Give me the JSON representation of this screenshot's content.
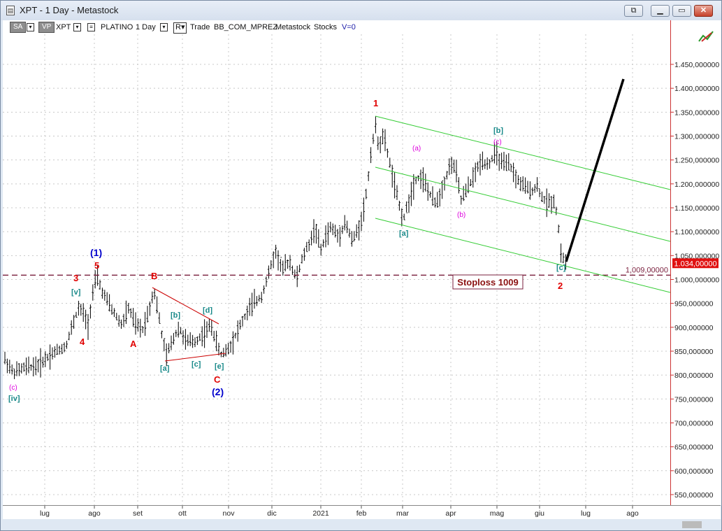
{
  "window": {
    "title": "XPT - 1 Day - Metastock",
    "buttons": {
      "restore_left": "⧉",
      "minimize": "▁",
      "maximize": "▭",
      "close": "✕"
    }
  },
  "toolbar": {
    "sa": "SA",
    "vp": "VP",
    "symbol": "XPT",
    "name": "PLATINO",
    "period": "1 Day",
    "r_label": "R",
    "trade": "Trade",
    "layout": "BB_COM_MPREZ",
    "source": "Metastock",
    "kind": "Stocks",
    "v": "V=0"
  },
  "chart_data": {
    "type": "ohlc",
    "y_ticks": [
      "550,000000",
      "600,000000",
      "650,000000",
      "700,000000",
      "750,000000",
      "800,000000",
      "850,000000",
      "900,000000",
      "950,000000",
      "1.000,000000",
      "1.050,000000",
      "1.100,000000",
      "1.150,000000",
      "1.200,000000",
      "1.250,000000",
      "1.300,000000",
      "1.350,000000",
      "1.400,000000",
      "1.450,000000"
    ],
    "y_tick_values": [
      550,
      600,
      650,
      700,
      750,
      800,
      850,
      900,
      950,
      1000,
      1050,
      1100,
      1150,
      1200,
      1250,
      1300,
      1350,
      1400,
      1450
    ],
    "ylim": [
      510,
      1480
    ],
    "x_labels": [
      "lug",
      "ago",
      "set",
      "ott",
      "nov",
      "dic",
      "2021",
      "feb",
      "mar",
      "apr",
      "mag",
      "giu",
      "lug",
      "ago"
    ],
    "last_price": "1.034,00000",
    "last_price_value": 1034,
    "stoploss_value": 1009,
    "stoploss_axis_label": "1,009,00000",
    "stoploss_label": "Stoploss 1009",
    "colors": {
      "bars": "#000000",
      "channel": "#33cc33",
      "stoploss": "#7a1f3d",
      "triangle": "#cc0000",
      "price_box": "#e01010",
      "wave_red": "#e00000",
      "wave_blue": "#0000cc",
      "wave_teal": "#1a8a8a",
      "wave_magenta": "#dd00dd",
      "projection": "#000000"
    },
    "wave_labels": {
      "c_left": "(c)",
      "iv": "[iv]",
      "v": "[v]",
      "three": "3",
      "four": "4",
      "five": "5",
      "one_major": "(1)",
      "B": "B",
      "A": "A",
      "a1": "[a]",
      "b1": "[b]",
      "c1": "[c]",
      "d1": "[d]",
      "e1": "[e]",
      "C": "C",
      "two_major": "(2)",
      "one": "1",
      "a_pink": "(a)",
      "a2": "[a]",
      "b_pink": "(b)",
      "b2": "[b]",
      "c_pink": "(c)",
      "c2": "[c]",
      "two": "2"
    }
  }
}
